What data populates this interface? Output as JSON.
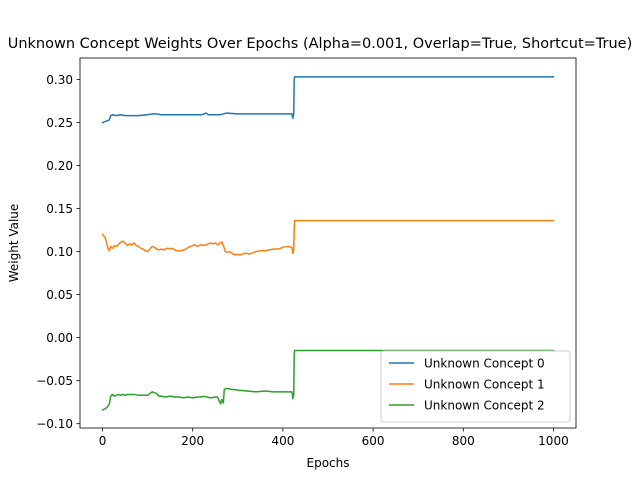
{
  "chart_data": {
    "type": "line",
    "title": "Unknown Concept Weights Over Epochs (Alpha=0.001, Overlap=True, Shortcut=True)",
    "xlabel": "Epochs",
    "ylabel": "Weight Value",
    "xlim": [
      -50,
      1050
    ],
    "ylim": [
      -0.105,
      0.325
    ],
    "xticks": [
      0,
      200,
      400,
      600,
      800,
      1000
    ],
    "xtick_labels": [
      "0",
      "200",
      "400",
      "600",
      "800",
      "1000"
    ],
    "yticks": [
      -0.1,
      -0.05,
      0.0,
      0.05,
      0.1,
      0.15,
      0.2,
      0.25,
      0.3
    ],
    "ytick_labels": [
      "−0.10",
      "−0.05",
      "0.00",
      "0.05",
      "0.10",
      "0.15",
      "0.20",
      "0.25",
      "0.30"
    ],
    "grid": false,
    "legend_position": "lower-right",
    "series": [
      {
        "name": "Unknown Concept 0",
        "color": "#1f77b4",
        "points": [
          [
            0,
            0.25
          ],
          [
            5,
            0.251
          ],
          [
            10,
            0.252
          ],
          [
            15,
            0.253
          ],
          [
            18,
            0.258
          ],
          [
            22,
            0.259
          ],
          [
            30,
            0.258
          ],
          [
            40,
            0.259
          ],
          [
            50,
            0.258
          ],
          [
            60,
            0.258
          ],
          [
            80,
            0.258
          ],
          [
            100,
            0.259
          ],
          [
            110,
            0.26
          ],
          [
            120,
            0.26
          ],
          [
            130,
            0.259
          ],
          [
            150,
            0.259
          ],
          [
            180,
            0.259
          ],
          [
            200,
            0.259
          ],
          [
            220,
            0.259
          ],
          [
            230,
            0.261
          ],
          [
            235,
            0.259
          ],
          [
            260,
            0.259
          ],
          [
            275,
            0.261
          ],
          [
            300,
            0.26
          ],
          [
            340,
            0.26
          ],
          [
            380,
            0.26
          ],
          [
            410,
            0.26
          ],
          [
            420,
            0.26
          ],
          [
            422,
            0.255
          ],
          [
            424,
            0.26
          ],
          [
            425,
            0.3
          ],
          [
            426,
            0.303
          ],
          [
            440,
            0.303
          ],
          [
            600,
            0.303
          ],
          [
            800,
            0.303
          ],
          [
            1000,
            0.303
          ]
        ]
      },
      {
        "name": "Unknown Concept 1",
        "color": "#ff7f0e",
        "points": [
          [
            0,
            0.12
          ],
          [
            3,
            0.118
          ],
          [
            6,
            0.116
          ],
          [
            9,
            0.11
          ],
          [
            12,
            0.104
          ],
          [
            15,
            0.101
          ],
          [
            18,
            0.106
          ],
          [
            22,
            0.104
          ],
          [
            26,
            0.107
          ],
          [
            30,
            0.106
          ],
          [
            35,
            0.108
          ],
          [
            40,
            0.111
          ],
          [
            45,
            0.112
          ],
          [
            50,
            0.11
          ],
          [
            55,
            0.107
          ],
          [
            60,
            0.109
          ],
          [
            65,
            0.108
          ],
          [
            70,
            0.11
          ],
          [
            75,
            0.107
          ],
          [
            80,
            0.106
          ],
          [
            85,
            0.104
          ],
          [
            90,
            0.103
          ],
          [
            95,
            0.101
          ],
          [
            100,
            0.1
          ],
          [
            105,
            0.103
          ],
          [
            110,
            0.106
          ],
          [
            115,
            0.105
          ],
          [
            120,
            0.103
          ],
          [
            125,
            0.102
          ],
          [
            130,
            0.103
          ],
          [
            135,
            0.102
          ],
          [
            140,
            0.103
          ],
          [
            145,
            0.104
          ],
          [
            150,
            0.103
          ],
          [
            155,
            0.104
          ],
          [
            160,
            0.102
          ],
          [
            165,
            0.101
          ],
          [
            170,
            0.101
          ],
          [
            175,
            0.101
          ],
          [
            180,
            0.102
          ],
          [
            185,
            0.103
          ],
          [
            190,
            0.105
          ],
          [
            195,
            0.106
          ],
          [
            200,
            0.107
          ],
          [
            205,
            0.108
          ],
          [
            210,
            0.106
          ],
          [
            215,
            0.107
          ],
          [
            220,
            0.108
          ],
          [
            225,
            0.107
          ],
          [
            230,
            0.108
          ],
          [
            235,
            0.109
          ],
          [
            240,
            0.11
          ],
          [
            245,
            0.109
          ],
          [
            250,
            0.11
          ],
          [
            255,
            0.108
          ],
          [
            260,
            0.11
          ],
          [
            265,
            0.111
          ],
          [
            270,
            0.104
          ],
          [
            272,
            0.1
          ],
          [
            275,
            0.099
          ],
          [
            280,
            0.1
          ],
          [
            285,
            0.099
          ],
          [
            290,
            0.097
          ],
          [
            295,
            0.096
          ],
          [
            300,
            0.097
          ],
          [
            305,
            0.096
          ],
          [
            310,
            0.097
          ],
          [
            315,
            0.098
          ],
          [
            320,
            0.098
          ],
          [
            325,
            0.097
          ],
          [
            330,
            0.098
          ],
          [
            340,
            0.1
          ],
          [
            350,
            0.101
          ],
          [
            360,
            0.101
          ],
          [
            370,
            0.102
          ],
          [
            380,
            0.103
          ],
          [
            390,
            0.103
          ],
          [
            395,
            0.104
          ],
          [
            400,
            0.105
          ],
          [
            410,
            0.106
          ],
          [
            420,
            0.105
          ],
          [
            422,
            0.098
          ],
          [
            424,
            0.102
          ],
          [
            425,
            0.125
          ],
          [
            426,
            0.136
          ],
          [
            440,
            0.136
          ],
          [
            600,
            0.136
          ],
          [
            800,
            0.136
          ],
          [
            1000,
            0.136
          ]
        ]
      },
      {
        "name": "Unknown Concept 2",
        "color": "#2ca02c",
        "points": [
          [
            0,
            -0.084
          ],
          [
            5,
            -0.083
          ],
          [
            10,
            -0.081
          ],
          [
            14,
            -0.078
          ],
          [
            16,
            -0.075
          ],
          [
            18,
            -0.068
          ],
          [
            22,
            -0.066
          ],
          [
            26,
            -0.068
          ],
          [
            30,
            -0.067
          ],
          [
            35,
            -0.066
          ],
          [
            40,
            -0.067
          ],
          [
            45,
            -0.066
          ],
          [
            50,
            -0.067
          ],
          [
            55,
            -0.066
          ],
          [
            60,
            -0.066
          ],
          [
            65,
            -0.066
          ],
          [
            70,
            -0.066
          ],
          [
            80,
            -0.067
          ],
          [
            90,
            -0.067
          ],
          [
            100,
            -0.067
          ],
          [
            105,
            -0.065
          ],
          [
            110,
            -0.063
          ],
          [
            115,
            -0.064
          ],
          [
            120,
            -0.065
          ],
          [
            125,
            -0.068
          ],
          [
            130,
            -0.068
          ],
          [
            140,
            -0.069
          ],
          [
            150,
            -0.068
          ],
          [
            160,
            -0.069
          ],
          [
            170,
            -0.069
          ],
          [
            180,
            -0.07
          ],
          [
            190,
            -0.069
          ],
          [
            200,
            -0.07
          ],
          [
            210,
            -0.069
          ],
          [
            220,
            -0.069
          ],
          [
            225,
            -0.068
          ],
          [
            230,
            -0.069
          ],
          [
            240,
            -0.07
          ],
          [
            250,
            -0.069
          ],
          [
            255,
            -0.069
          ],
          [
            258,
            -0.073
          ],
          [
            260,
            -0.075
          ],
          [
            262,
            -0.077
          ],
          [
            264,
            -0.072
          ],
          [
            266,
            -0.073
          ],
          [
            268,
            -0.076
          ],
          [
            270,
            -0.06
          ],
          [
            275,
            -0.059
          ],
          [
            285,
            -0.06
          ],
          [
            300,
            -0.061
          ],
          [
            320,
            -0.062
          ],
          [
            340,
            -0.063
          ],
          [
            360,
            -0.062
          ],
          [
            380,
            -0.063
          ],
          [
            400,
            -0.063
          ],
          [
            410,
            -0.063
          ],
          [
            420,
            -0.063
          ],
          [
            422,
            -0.071
          ],
          [
            424,
            -0.066
          ],
          [
            425,
            -0.02
          ],
          [
            426,
            -0.015
          ],
          [
            440,
            -0.015
          ],
          [
            600,
            -0.015
          ],
          [
            800,
            -0.015
          ],
          [
            1000,
            -0.015
          ]
        ]
      }
    ]
  }
}
